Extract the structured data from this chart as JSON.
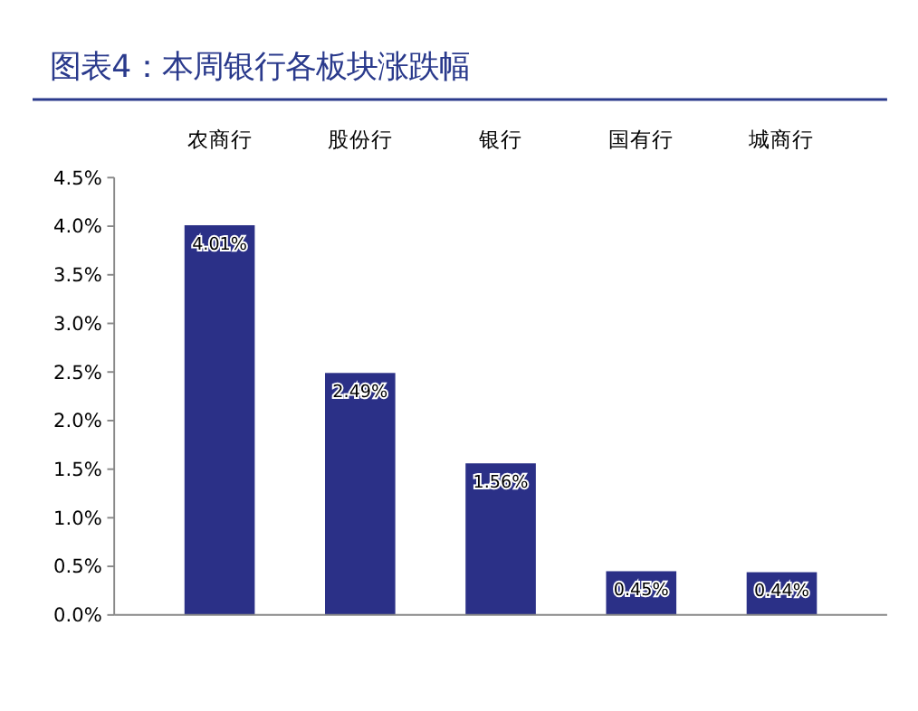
{
  "chart_data": {
    "type": "bar",
    "title": "图表4：本周银行各板块涨跌幅",
    "categories": [
      "农商行",
      "股份行",
      "银行",
      "国有行",
      "城商行"
    ],
    "values": [
      4.01,
      2.49,
      1.56,
      0.45,
      0.44
    ],
    "value_labels": [
      "4.01%",
      "2.49%",
      "1.56%",
      "0.45%",
      "0.44%"
    ],
    "color": "#2b3087",
    "ylim": [
      0,
      4.5
    ],
    "yticks": [
      {
        "value": 0,
        "label": "0.0%"
      },
      {
        "value": 0.5,
        "label": "0.5%"
      },
      {
        "value": 1,
        "label": "1.0%"
      },
      {
        "value": 1.5,
        "label": "1.5%"
      },
      {
        "value": 2,
        "label": "2.0%"
      },
      {
        "value": 2.5,
        "label": "2.5%"
      },
      {
        "value": 3,
        "label": "3.0%"
      },
      {
        "value": 3.5,
        "label": "3.5%"
      },
      {
        "value": 4,
        "label": "4.0%"
      },
      {
        "value": 4.5,
        "label": "4.5%"
      }
    ],
    "grid": false
  }
}
